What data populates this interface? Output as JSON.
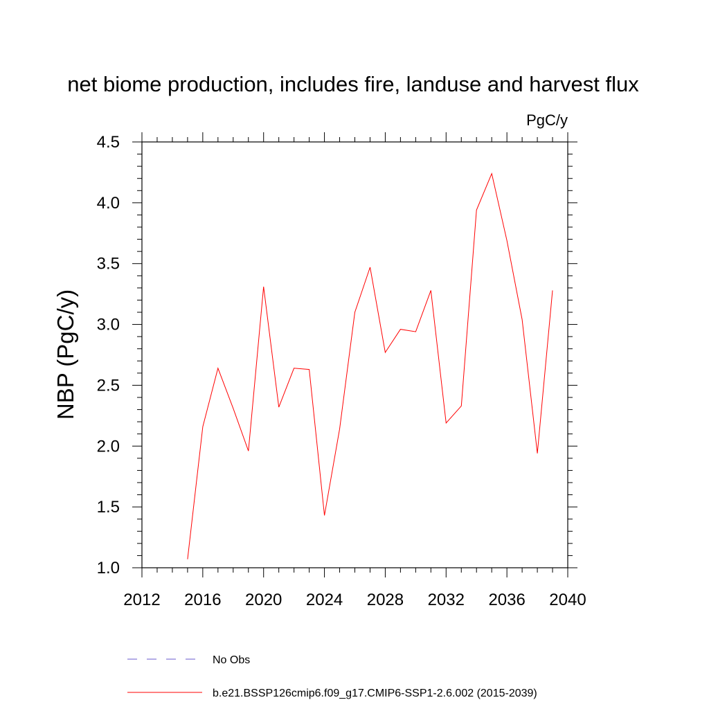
{
  "chart_data": {
    "type": "line",
    "title": "net biome production, includes fire, landuse and harvest flux",
    "units": "PgC/y",
    "xlabel": "",
    "ylabel": "NBP  (PgC/y)",
    "xlim": [
      2012,
      2040
    ],
    "ylim": [
      1.0,
      4.5
    ],
    "xticks": [
      "2012",
      "2016",
      "2020",
      "2024",
      "2028",
      "2032",
      "2036",
      "2040"
    ],
    "yticks": [
      "1.0",
      "1.5",
      "2.0",
      "2.5",
      "3.0",
      "3.5",
      "4.0",
      "4.5"
    ],
    "x": [
      2015,
      2016,
      2017,
      2018,
      2019,
      2020,
      2021,
      2022,
      2023,
      2024,
      2025,
      2026,
      2027,
      2028,
      2029,
      2030,
      2031,
      2032,
      2033,
      2034,
      2035,
      2036,
      2037,
      2038,
      2039
    ],
    "series": [
      {
        "name": "b.e21.BSSP126cmip6.f09_g17.CMIP6-SSP1-2.6.002 (2015-2039)",
        "color": "#ff0000",
        "dash": "solid",
        "values": [
          1.07,
          2.16,
          2.64,
          2.31,
          1.96,
          3.31,
          2.32,
          2.64,
          2.63,
          1.43,
          2.14,
          3.1,
          3.47,
          2.77,
          2.96,
          2.94,
          3.28,
          2.19,
          2.33,
          3.94,
          4.24,
          3.69,
          3.04,
          1.94,
          3.28
        ]
      }
    ],
    "legend": [
      {
        "label": "No Obs",
        "color": "#6a5acd",
        "dash": "dashed"
      },
      {
        "label": "b.e21.BSSP126cmip6.f09_g17.CMIP6-SSP1-2.6.002 (2015-2039)",
        "color": "#ff0000",
        "dash": "solid"
      }
    ],
    "legend_position": "bottom",
    "grid": false
  }
}
